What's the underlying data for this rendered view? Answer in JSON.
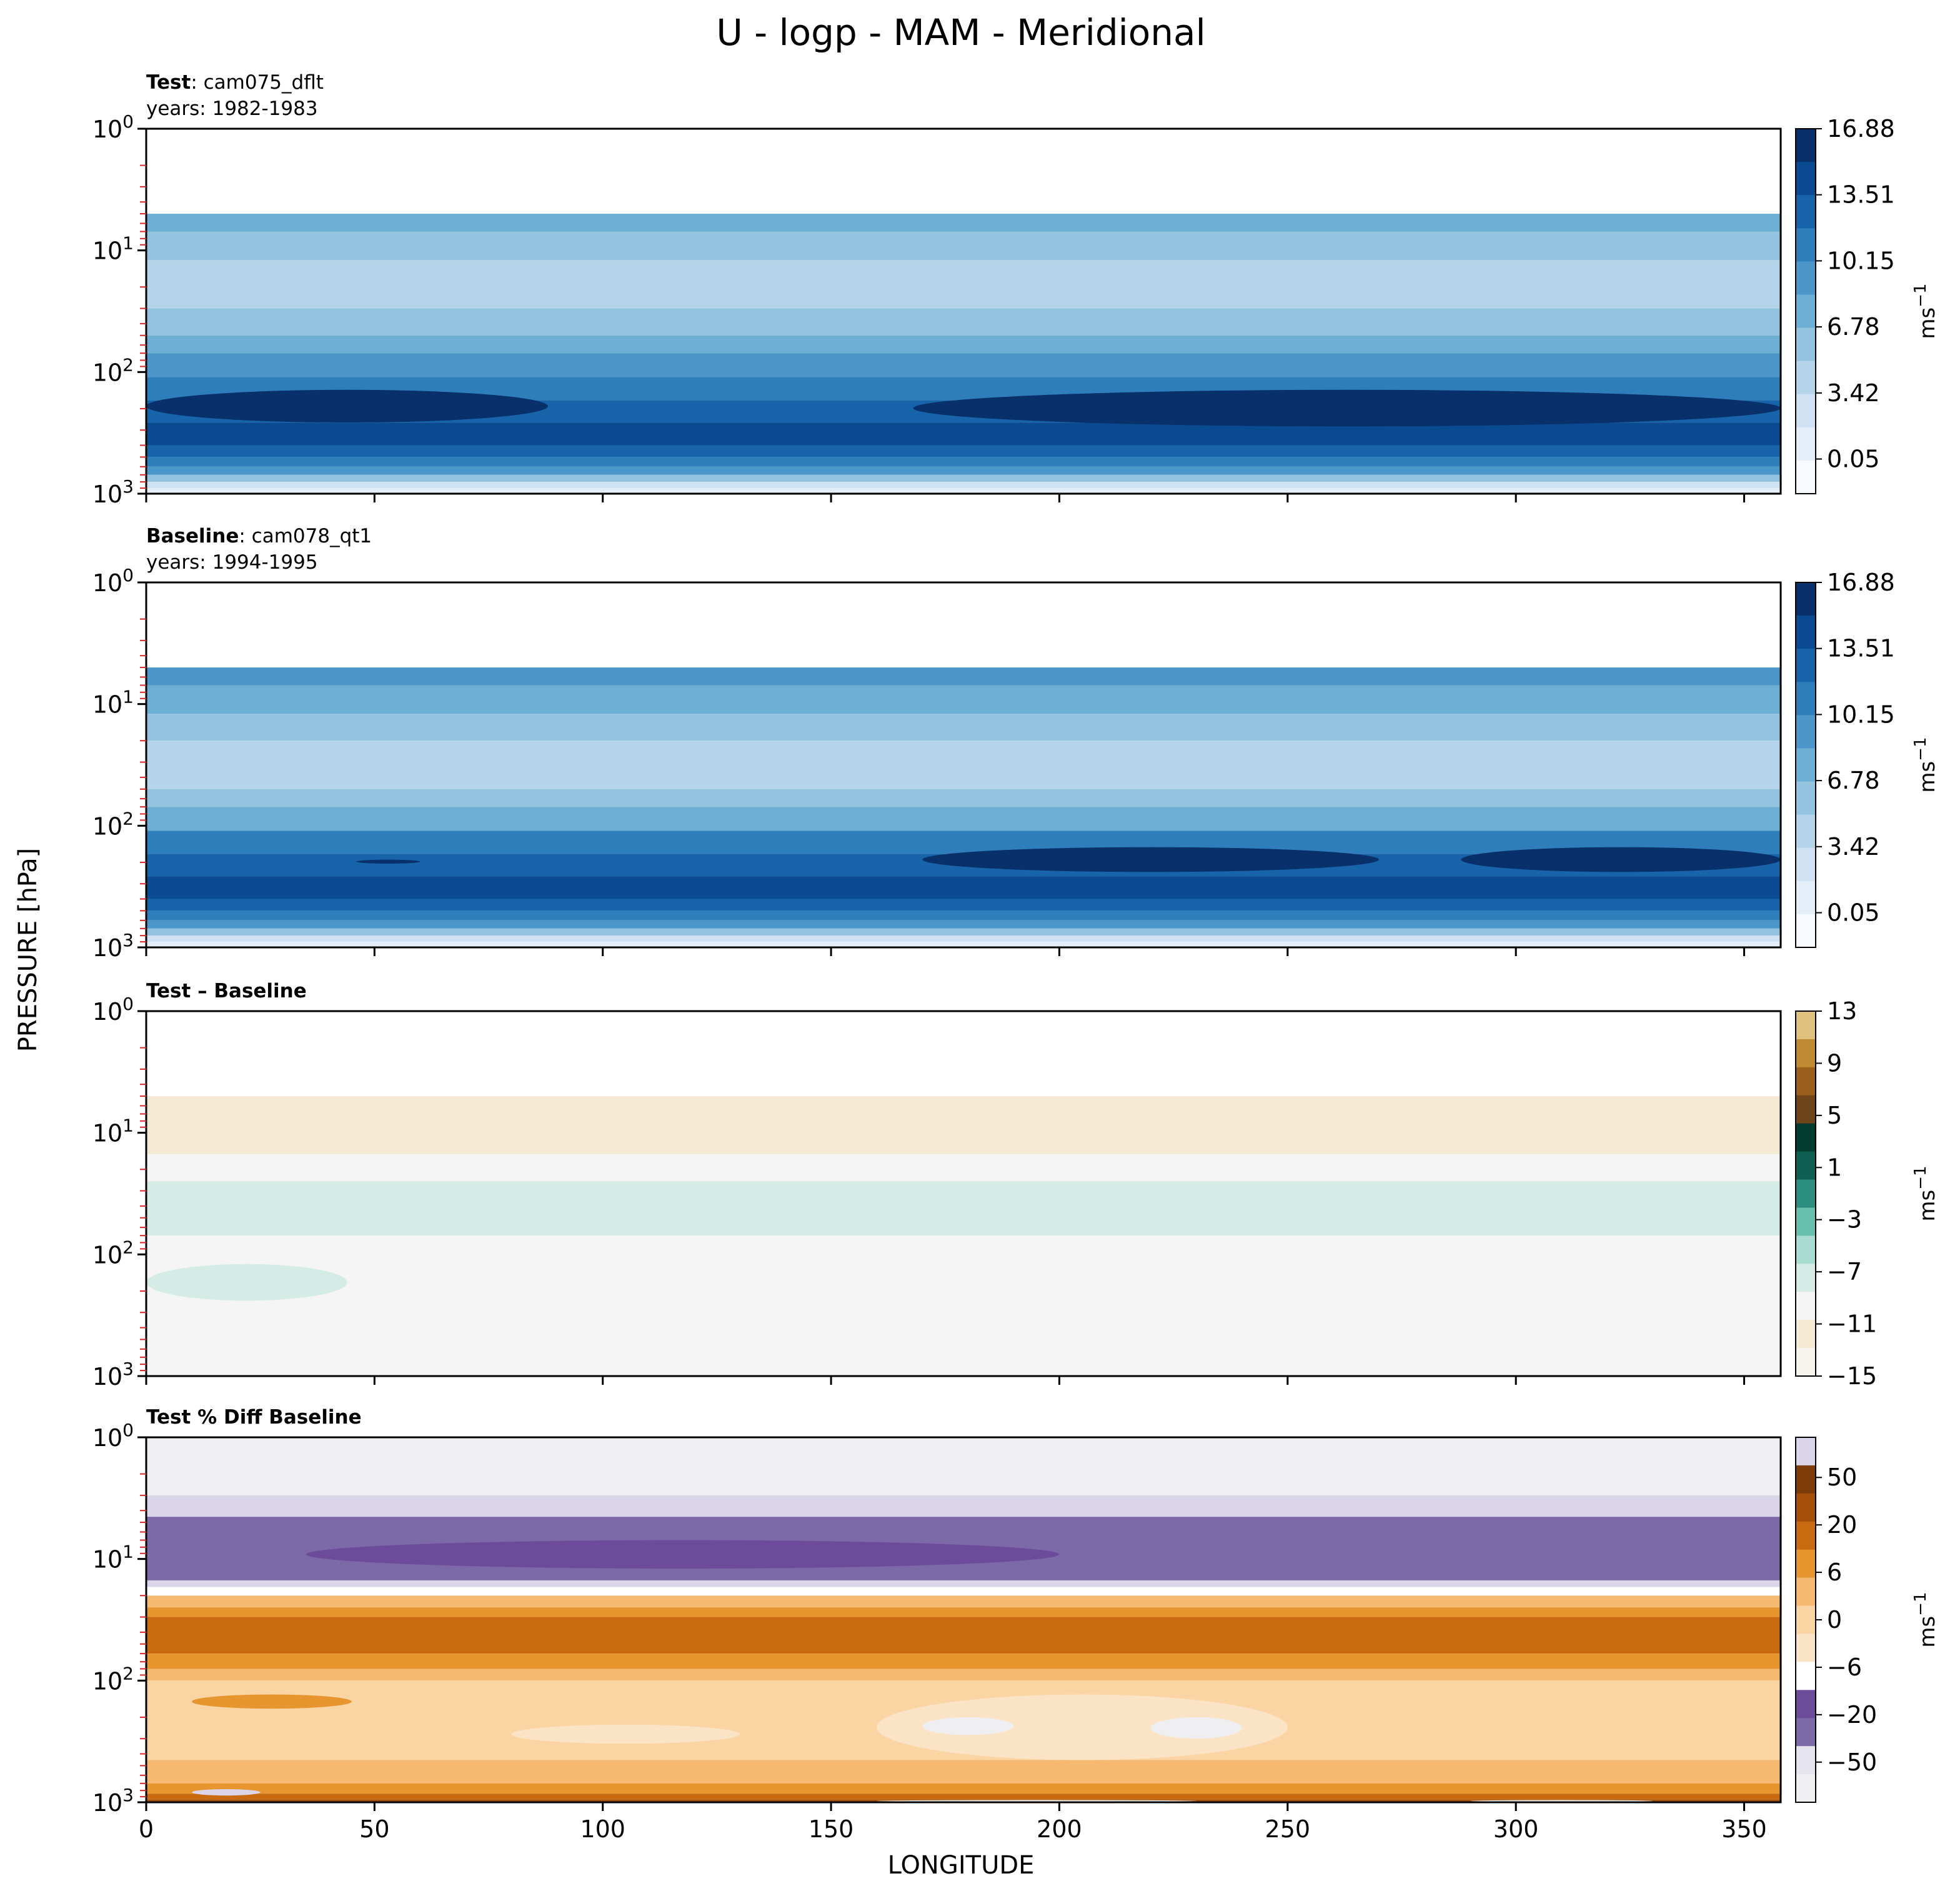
{
  "figure": {
    "title": "U - logp - MAM - Meridional",
    "ylabel": "PRESSURE [hPa]",
    "xlabel": "LONGITUDE"
  },
  "chart_data": [
    {
      "type": "heatmap",
      "panel_label_bold": "Test",
      "panel_label_rest": ": cam075_dflt",
      "panel_sublabel": "years: 1982-1983",
      "x_ticks": [
        0,
        50,
        100,
        150,
        200,
        250,
        300,
        350
      ],
      "xlim": [
        0,
        358
      ],
      "y_scale": "log",
      "y_ticks": [
        1,
        10,
        100,
        1000
      ],
      "y_tick_labels": [
        "10^0",
        "10^1",
        "10^2",
        "10^3"
      ],
      "ylim": [
        1,
        1000
      ],
      "colormap": "Blues",
      "colorbar_ticks": [
        "16.88",
        "13.51",
        "10.15",
        "6.78",
        "3.42",
        "0.05"
      ],
      "colorbar_label": "ms^-1",
      "colors": [
        "#f7fbff",
        "#e3eef8",
        "#cfe1f2",
        "#b5d4e9",
        "#93c3df",
        "#6daed5",
        "#4b97c9",
        "#2f7ebc",
        "#1864aa",
        "#0a4a90",
        "#08306b"
      ],
      "layers": [
        {
          "top": 5,
          "level": 5,
          "bottom": 7
        },
        {
          "top": 7,
          "level": 4,
          "bottom": 12
        },
        {
          "top": 12,
          "level": 3,
          "bottom": 30
        },
        {
          "top": 30,
          "level": 4,
          "bottom": 50
        },
        {
          "top": 50,
          "level": 5,
          "bottom": 70
        },
        {
          "top": 70,
          "level": 6,
          "bottom": 110
        },
        {
          "top": 110,
          "level": 7,
          "bottom": 170
        },
        {
          "top": 170,
          "level": 8,
          "bottom": 260
        },
        {
          "top": 260,
          "level": 9,
          "bottom": 400
        },
        {
          "top": 400,
          "level": 8,
          "bottom": 500
        },
        {
          "top": 500,
          "level": 7,
          "bottom": 600
        },
        {
          "top": 600,
          "level": 6,
          "bottom": 700
        },
        {
          "top": 700,
          "level": 4,
          "bottom": 800
        },
        {
          "top": 800,
          "level": 2,
          "bottom": 900
        },
        {
          "top": 900,
          "level": 1,
          "bottom": 1000
        }
      ],
      "blobs": [
        {
          "x0": 0,
          "x1": 88,
          "p_top": 140,
          "p_bottom": 260,
          "level": 10
        },
        {
          "x0": 168,
          "x1": 358,
          "p_top": 140,
          "p_bottom": 280,
          "level": 10
        }
      ]
    },
    {
      "type": "heatmap",
      "panel_label_bold": "Baseline",
      "panel_label_rest": ": cam078_qt1",
      "panel_sublabel": "years: 1994-1995",
      "x_ticks": [
        0,
        50,
        100,
        150,
        200,
        250,
        300,
        350
      ],
      "xlim": [
        0,
        358
      ],
      "y_scale": "log",
      "y_ticks": [
        1,
        10,
        100,
        1000
      ],
      "y_tick_labels": [
        "10^0",
        "10^1",
        "10^2",
        "10^3"
      ],
      "ylim": [
        1,
        1000
      ],
      "colormap": "Blues",
      "colorbar_ticks": [
        "16.88",
        "13.51",
        "10.15",
        "6.78",
        "3.42",
        "0.05"
      ],
      "colorbar_label": "ms^-1",
      "colors": [
        "#f7fbff",
        "#e3eef8",
        "#cfe1f2",
        "#b5d4e9",
        "#93c3df",
        "#6daed5",
        "#4b97c9",
        "#2f7ebc",
        "#1864aa",
        "#0a4a90",
        "#08306b"
      ],
      "layers": [
        {
          "top": 5,
          "level": 6,
          "bottom": 7
        },
        {
          "top": 7,
          "level": 5,
          "bottom": 12
        },
        {
          "top": 12,
          "level": 4,
          "bottom": 20
        },
        {
          "top": 20,
          "level": 3,
          "bottom": 50
        },
        {
          "top": 50,
          "level": 4,
          "bottom": 70
        },
        {
          "top": 70,
          "level": 5,
          "bottom": 110
        },
        {
          "top": 110,
          "level": 7,
          "bottom": 170
        },
        {
          "top": 170,
          "level": 8,
          "bottom": 260
        },
        {
          "top": 260,
          "level": 9,
          "bottom": 400
        },
        {
          "top": 400,
          "level": 8,
          "bottom": 500
        },
        {
          "top": 500,
          "level": 7,
          "bottom": 600
        },
        {
          "top": 600,
          "level": 6,
          "bottom": 700
        },
        {
          "top": 700,
          "level": 4,
          "bottom": 800
        },
        {
          "top": 800,
          "level": 2,
          "bottom": 900
        },
        {
          "top": 900,
          "level": 1,
          "bottom": 1000
        }
      ],
      "blobs": [
        {
          "x0": 46,
          "x1": 60,
          "p_top": 190,
          "p_bottom": 205,
          "level": 10
        },
        {
          "x0": 170,
          "x1": 270,
          "p_top": 150,
          "p_bottom": 240,
          "level": 10
        },
        {
          "x0": 288,
          "x1": 358,
          "p_top": 150,
          "p_bottom": 240,
          "level": 10
        }
      ]
    },
    {
      "type": "heatmap",
      "panel_label_bold": "Test – Baseline",
      "panel_label_rest": "",
      "panel_sublabel": "",
      "x_ticks": [
        0,
        50,
        100,
        150,
        200,
        250,
        300,
        350
      ],
      "xlim": [
        0,
        358
      ],
      "y_scale": "log",
      "y_ticks": [
        1,
        10,
        100,
        1000
      ],
      "y_tick_labels": [
        "10^0",
        "10^1",
        "10^2",
        "10^3"
      ],
      "ylim": [
        1,
        1000
      ],
      "colormap": "BrBG",
      "colorbar_ticks": [
        "13",
        "9",
        "5",
        "1",
        "−3",
        "−7",
        "−11",
        "−15"
      ],
      "colorbar_label": "ms^-1",
      "colors": [
        "#f7f4ed",
        "#f4ead4",
        "#f5f5f5",
        "#d5ece6",
        "#a9dcd0",
        "#67bfae",
        "#2b8e7e",
        "#0e5f52",
        "#003c30",
        "#6f4418",
        "#9a5f1b",
        "#c08a32",
        "#dfc27d"
      ],
      "layers": [
        {
          "top": 5,
          "level": 1,
          "bottom": 15
        },
        {
          "top": 15,
          "level": 2,
          "bottom": 25
        },
        {
          "top": 25,
          "level": 3,
          "bottom": 70
        },
        {
          "top": 70,
          "level": 2,
          "bottom": 1000
        }
      ],
      "blobs": [
        {
          "x0": 0,
          "x1": 44,
          "p_top": 120,
          "p_bottom": 240,
          "level": 3
        }
      ]
    },
    {
      "type": "heatmap",
      "panel_label_bold": "Test % Diff Baseline",
      "panel_label_rest": "",
      "panel_sublabel": "",
      "x_ticks": [
        0,
        50,
        100,
        150,
        200,
        250,
        300,
        350
      ],
      "xlim": [
        0,
        358
      ],
      "y_scale": "log",
      "y_ticks": [
        1,
        10,
        100,
        1000
      ],
      "y_tick_labels": [
        "10^0",
        "10^1",
        "10^2",
        "10^3"
      ],
      "ylim": [
        1,
        1000
      ],
      "colormap": "PuOr",
      "colorbar_ticks": [
        "50",
        "20",
        "6",
        "0",
        "−6",
        "−20",
        "−50"
      ],
      "colorbar_label": "ms^-1",
      "colors": [
        "#efeff2",
        "#e6e4ef",
        "#7c69a8",
        "#6c4b9a",
        "#ffffff",
        "#fbe3c5",
        "#fbd4a4",
        "#f6b971",
        "#e7952f",
        "#c96a10",
        "#a4500b",
        "#7d3b08",
        "#dad5e9"
      ],
      "layers": [
        {
          "top": 1,
          "level": 0,
          "bottom": 3
        },
        {
          "top": 3,
          "level": 12,
          "bottom": 4.5
        },
        {
          "top": 4.5,
          "level": 2,
          "bottom": 15
        },
        {
          "top": 15,
          "level": 12,
          "bottom": 17
        },
        {
          "top": 17,
          "level": 4,
          "bottom": 20
        },
        {
          "top": 20,
          "level": 7,
          "bottom": 25
        },
        {
          "top": 25,
          "level": 8,
          "bottom": 30
        },
        {
          "top": 30,
          "level": 9,
          "bottom": 60
        },
        {
          "top": 60,
          "level": 8,
          "bottom": 80
        },
        {
          "top": 80,
          "level": 7,
          "bottom": 100
        },
        {
          "top": 100,
          "level": 6,
          "bottom": 450
        },
        {
          "top": 450,
          "level": 7,
          "bottom": 700
        },
        {
          "top": 700,
          "level": 8,
          "bottom": 850
        },
        {
          "top": 850,
          "level": 9,
          "bottom": 950
        },
        {
          "top": 950,
          "level": 10,
          "bottom": 1000
        }
      ],
      "blobs": [
        {
          "x0": 35,
          "x1": 200,
          "p_top": 7,
          "p_bottom": 12,
          "level": 3
        },
        {
          "x0": 10,
          "x1": 45,
          "p_top": 130,
          "p_bottom": 170,
          "level": 8
        },
        {
          "x0": 80,
          "x1": 130,
          "p_top": 230,
          "p_bottom": 330,
          "level": 5
        },
        {
          "x0": 160,
          "x1": 250,
          "p_top": 130,
          "p_bottom": 450,
          "level": 5
        },
        {
          "x0": 170,
          "x1": 190,
          "p_top": 200,
          "p_bottom": 280,
          "level": 0
        },
        {
          "x0": 220,
          "x1": 240,
          "p_top": 200,
          "p_bottom": 300,
          "level": 0
        },
        {
          "x0": 10,
          "x1": 25,
          "p_top": 780,
          "p_bottom": 880,
          "level": 12
        },
        {
          "x0": 160,
          "x1": 230,
          "p_top": 960,
          "p_bottom": 990,
          "level": 4
        },
        {
          "x0": 290,
          "x1": 330,
          "p_top": 960,
          "p_bottom": 990,
          "level": 4
        }
      ]
    }
  ]
}
